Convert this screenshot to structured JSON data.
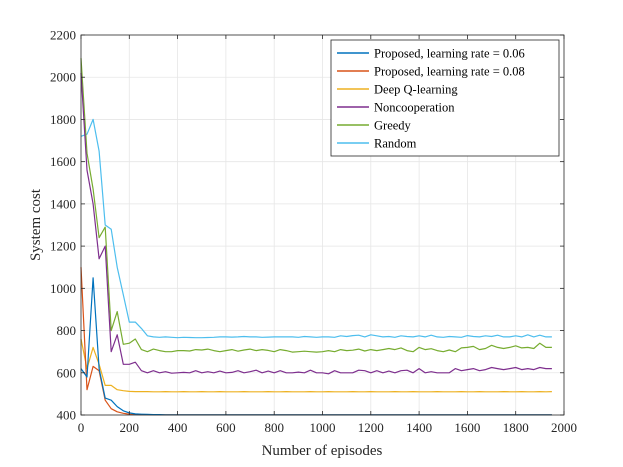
{
  "chart_data": {
    "type": "line",
    "title": "",
    "xlabel": "Number of episodes",
    "ylabel": "System cost",
    "xlim": [
      0,
      2000
    ],
    "ylim": [
      400,
      2200
    ],
    "xticks": [
      0,
      200,
      400,
      600,
      800,
      1000,
      1200,
      1400,
      1600,
      1800,
      2000
    ],
    "yticks": [
      400,
      600,
      800,
      1000,
      1200,
      1400,
      1600,
      1800,
      2000,
      2200
    ],
    "grid": true,
    "legend_position": "top-right",
    "series": [
      {
        "name": "Proposed, learning rate = 0.06",
        "color": "#0072BD",
        "x": [
          0,
          25,
          50,
          75,
          100,
          125,
          150,
          175,
          200,
          225,
          250,
          275,
          300,
          325,
          350,
          375,
          400,
          425,
          450,
          475,
          500,
          525,
          550,
          575,
          600,
          625,
          650,
          675,
          700,
          725,
          750,
          775,
          800,
          825,
          850,
          875,
          900,
          925,
          950,
          975,
          1000,
          1025,
          1050,
          1075,
          1100,
          1125,
          1150,
          1175,
          1200,
          1225,
          1250,
          1275,
          1300,
          1325,
          1350,
          1375,
          1400,
          1425,
          1450,
          1475,
          1500,
          1525,
          1550,
          1575,
          1600,
          1625,
          1650,
          1675,
          1700,
          1725,
          1750,
          1775,
          1800,
          1825,
          1850,
          1875,
          1900,
          1925,
          1950
        ],
        "y": [
          620,
          580,
          1050,
          620,
          480,
          470,
          440,
          420,
          410,
          405,
          404,
          403,
          402,
          402,
          401,
          401,
          401,
          401,
          401,
          401,
          401,
          401,
          401,
          401,
          401,
          401,
          401,
          401,
          401,
          401,
          401,
          401,
          401,
          401,
          401,
          401,
          401,
          401,
          401,
          401,
          401,
          401,
          401,
          401,
          401,
          401,
          401,
          401,
          401,
          401,
          401,
          401,
          401,
          401,
          401,
          401,
          401,
          401,
          401,
          401,
          401,
          401,
          401,
          401,
          401,
          401,
          401,
          401,
          401,
          401,
          401,
          401,
          401,
          401,
          401,
          401,
          401,
          401,
          401
        ]
      },
      {
        "name": "Proposed, learning rate = 0.08",
        "color": "#D95319",
        "x": [
          0,
          25,
          50,
          75,
          100,
          125,
          150,
          175,
          200,
          225,
          250,
          275,
          300,
          325,
          350,
          375,
          400,
          425,
          450,
          475,
          500,
          525,
          550,
          575,
          600,
          625,
          650,
          675,
          700,
          725,
          750,
          775,
          800,
          825,
          850,
          875,
          900,
          925,
          950,
          975,
          1000,
          1025,
          1050,
          1075,
          1100,
          1125,
          1150,
          1175,
          1200,
          1225,
          1250,
          1275,
          1300,
          1325,
          1350,
          1375,
          1400,
          1425,
          1450,
          1475,
          1500,
          1525,
          1550,
          1575,
          1600,
          1625,
          1650,
          1675,
          1700,
          1725,
          1750,
          1775,
          1800,
          1825,
          1850,
          1875,
          1900,
          1925,
          1950
        ],
        "y": [
          1100,
          520,
          630,
          610,
          470,
          430,
          415,
          408,
          404,
          403,
          402,
          402,
          401,
          401,
          401,
          401,
          401,
          401,
          401,
          401,
          401,
          401,
          401,
          401,
          401,
          401,
          401,
          401,
          401,
          401,
          401,
          401,
          401,
          401,
          401,
          401,
          401,
          401,
          401,
          401,
          401,
          401,
          401,
          401,
          401,
          401,
          401,
          401,
          401,
          401,
          401,
          401,
          401,
          401,
          401,
          401,
          401,
          401,
          401,
          401,
          401,
          401,
          401,
          401,
          401,
          401,
          401,
          401,
          401,
          401,
          401,
          401,
          401,
          401,
          401,
          401,
          401,
          401,
          401
        ]
      },
      {
        "name": "Deep Q-learning",
        "color": "#EDB120",
        "x": [
          0,
          25,
          50,
          75,
          100,
          125,
          150,
          175,
          200,
          225,
          250,
          275,
          300,
          325,
          350,
          375,
          400,
          425,
          450,
          475,
          500,
          525,
          550,
          575,
          600,
          625,
          650,
          675,
          700,
          725,
          750,
          775,
          800,
          825,
          850,
          875,
          900,
          925,
          950,
          975,
          1000,
          1025,
          1050,
          1075,
          1100,
          1125,
          1150,
          1175,
          1200,
          1225,
          1250,
          1275,
          1300,
          1325,
          1350,
          1375,
          1400,
          1425,
          1450,
          1475,
          1500,
          1525,
          1550,
          1575,
          1600,
          1625,
          1650,
          1675,
          1700,
          1725,
          1750,
          1775,
          1800,
          1825,
          1850,
          1875,
          1900,
          1925,
          1950
        ],
        "y": [
          760,
          620,
          720,
          640,
          540,
          540,
          520,
          515,
          512,
          511,
          511,
          511,
          510,
          510,
          511,
          510,
          510,
          511,
          510,
          510,
          511,
          510,
          510,
          511,
          510,
          510,
          510,
          511,
          510,
          510,
          510,
          511,
          510,
          510,
          511,
          510,
          510,
          510,
          511,
          510,
          510,
          511,
          510,
          510,
          510,
          511,
          510,
          510,
          511,
          510,
          510,
          510,
          511,
          510,
          510,
          511,
          510,
          510,
          510,
          511,
          510,
          510,
          510,
          511,
          510,
          510,
          511,
          510,
          510,
          510,
          511,
          510,
          510,
          511,
          510,
          510,
          511,
          510,
          511
        ]
      },
      {
        "name": "Noncooperation",
        "color": "#7E2F8E",
        "x": [
          0,
          25,
          50,
          75,
          100,
          125,
          150,
          175,
          200,
          225,
          250,
          275,
          300,
          325,
          350,
          375,
          400,
          425,
          450,
          475,
          500,
          525,
          550,
          575,
          600,
          625,
          650,
          675,
          700,
          725,
          750,
          775,
          800,
          825,
          850,
          875,
          900,
          925,
          950,
          975,
          1000,
          1025,
          1050,
          1075,
          1100,
          1125,
          1150,
          1175,
          1200,
          1225,
          1250,
          1275,
          1300,
          1325,
          1350,
          1375,
          1400,
          1425,
          1450,
          1475,
          1500,
          1525,
          1550,
          1575,
          1600,
          1625,
          1650,
          1675,
          1700,
          1725,
          1750,
          1775,
          1800,
          1825,
          1850,
          1875,
          1900,
          1925,
          1950
        ],
        "y": [
          2020,
          1560,
          1400,
          1140,
          1200,
          700,
          780,
          640,
          640,
          650,
          610,
          600,
          610,
          600,
          605,
          598,
          600,
          602,
          600,
          610,
          600,
          605,
          600,
          608,
          600,
          602,
          610,
          600,
          605,
          612,
          600,
          608,
          600,
          610,
          600,
          600,
          603,
          600,
          612,
          600,
          600,
          595,
          610,
          600,
          600,
          600,
          612,
          610,
          600,
          610,
          600,
          608,
          600,
          610,
          612,
          600,
          620,
          600,
          605,
          600,
          600,
          600,
          620,
          610,
          615,
          620,
          610,
          615,
          625,
          620,
          615,
          620,
          625,
          615,
          620,
          615,
          625,
          620,
          620
        ]
      },
      {
        "name": "Greedy",
        "color": "#77AC30",
        "x": [
          0,
          25,
          50,
          75,
          100,
          125,
          150,
          175,
          200,
          225,
          250,
          275,
          300,
          325,
          350,
          375,
          400,
          425,
          450,
          475,
          500,
          525,
          550,
          575,
          600,
          625,
          650,
          675,
          700,
          725,
          750,
          775,
          800,
          825,
          850,
          875,
          900,
          925,
          950,
          975,
          1000,
          1025,
          1050,
          1075,
          1100,
          1125,
          1150,
          1175,
          1200,
          1225,
          1250,
          1275,
          1300,
          1325,
          1350,
          1375,
          1400,
          1425,
          1450,
          1475,
          1500,
          1525,
          1550,
          1575,
          1600,
          1625,
          1650,
          1675,
          1700,
          1725,
          1750,
          1775,
          1800,
          1825,
          1850,
          1875,
          1900,
          1925,
          1950
        ],
        "y": [
          2090,
          1640,
          1470,
          1240,
          1290,
          800,
          890,
          735,
          740,
          760,
          710,
          700,
          712,
          705,
          700,
          700,
          705,
          705,
          703,
          710,
          708,
          712,
          705,
          700,
          705,
          710,
          702,
          708,
          712,
          705,
          710,
          706,
          700,
          710,
          705,
          698,
          700,
          702,
          700,
          698,
          700,
          705,
          700,
          710,
          705,
          707,
          712,
          703,
          710,
          705,
          710,
          715,
          710,
          718,
          705,
          700,
          720,
          710,
          714,
          705,
          700,
          708,
          700,
          718,
          720,
          725,
          710,
          715,
          730,
          720,
          715,
          720,
          728,
          718,
          720,
          715,
          740,
          720,
          720
        ]
      },
      {
        "name": "Random",
        "color": "#4DBEEE",
        "x": [
          0,
          25,
          50,
          75,
          100,
          125,
          150,
          175,
          200,
          225,
          250,
          275,
          300,
          325,
          350,
          375,
          400,
          425,
          450,
          475,
          500,
          525,
          550,
          575,
          600,
          625,
          650,
          675,
          700,
          725,
          750,
          775,
          800,
          825,
          850,
          875,
          900,
          925,
          950,
          975,
          1000,
          1025,
          1050,
          1075,
          1100,
          1125,
          1150,
          1175,
          1200,
          1225,
          1250,
          1275,
          1300,
          1325,
          1350,
          1375,
          1400,
          1425,
          1450,
          1475,
          1500,
          1525,
          1550,
          1575,
          1600,
          1625,
          1650,
          1675,
          1700,
          1725,
          1750,
          1775,
          1800,
          1825,
          1850,
          1875,
          1900,
          1925,
          1950
        ],
        "y": [
          1720,
          1730,
          1800,
          1650,
          1300,
          1280,
          1100,
          970,
          840,
          840,
          810,
          775,
          770,
          768,
          770,
          768,
          766,
          768,
          767,
          766,
          766,
          767,
          768,
          770,
          770,
          769,
          770,
          772,
          770,
          770,
          768,
          769,
          770,
          770,
          770,
          770,
          768,
          772,
          770,
          768,
          770,
          770,
          768,
          775,
          772,
          776,
          778,
          770,
          780,
          775,
          770,
          772,
          768,
          775,
          772,
          770,
          775,
          770,
          778,
          770,
          768,
          772,
          770,
          768,
          776,
          772,
          770,
          775,
          772,
          778,
          770,
          770,
          775,
          770,
          780,
          770,
          778,
          770,
          770
        ]
      }
    ]
  }
}
